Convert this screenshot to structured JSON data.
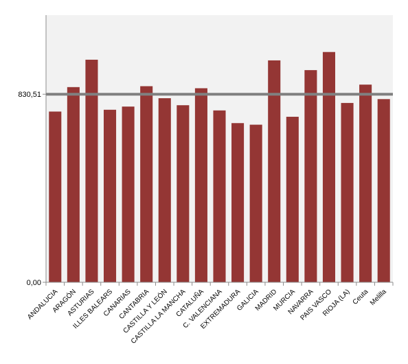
{
  "chart_data": {
    "type": "bar",
    "categories": [
      "ANDALUCIA",
      "ARAGÓN",
      "ASTURIAS",
      "ILLES BALEARS",
      "CANARIAS",
      "CANTABRIA",
      "CASTILLA Y LEÓN",
      "CASTILLA LA MANCHA",
      "CATALUÑA",
      "C. VALENCIANA",
      "EXTREMADURA",
      "GALICIA",
      "MADRID",
      "MURCIA",
      "NAVARRA",
      "PAIS VASCO",
      "RIOJA (LA)",
      "Ceuta",
      "Melilla"
    ],
    "values": [
      754,
      862,
      983,
      762,
      776,
      866,
      813,
      782,
      857,
      759,
      703,
      696,
      980,
      731,
      937,
      1017,
      792,
      873,
      809
    ],
    "reference_line": {
      "value": 830.51,
      "label": "830,51",
      "color": "#808080"
    },
    "y_tick_labels": [
      {
        "value": 0,
        "label": "0,00"
      },
      {
        "value": 830.51,
        "label": "830,51"
      }
    ],
    "ylim": [
      0,
      1180
    ],
    "bar_color": "#943634",
    "plot_background": "#f2f2f2",
    "grid": false,
    "title": "",
    "xlabel": "",
    "ylabel": ""
  }
}
